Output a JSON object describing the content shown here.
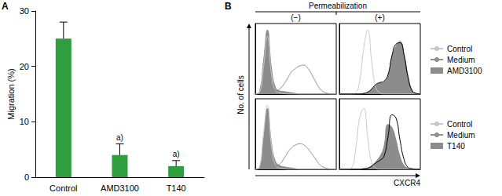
{
  "chart_data": [
    {
      "type": "bar",
      "panel": "A",
      "categories": [
        "Control",
        "AMD3100",
        "T140"
      ],
      "values": [
        25,
        4,
        2
      ],
      "errors": [
        3,
        2,
        1
      ],
      "color": "#2e9e3e",
      "ylabel": "Migration (%)",
      "ylim": [
        0,
        30
      ],
      "yticks": [
        0,
        10,
        20,
        30
      ],
      "grid": false,
      "annotations": [
        {
          "category": "AMD3100",
          "text": "a)"
        },
        {
          "category": "T140",
          "text": "a)"
        }
      ]
    },
    {
      "type": "line",
      "panel": "B",
      "header": "Permeabilization",
      "title": "(−)",
      "ylabel": "No. of cells",
      "tick_labels": false,
      "x": [
        0,
        5,
        10,
        15,
        20,
        25,
        30,
        35,
        40,
        45,
        50,
        55,
        60,
        65,
        70,
        75,
        80,
        85,
        90,
        95,
        100
      ],
      "xlim": [
        0,
        100
      ],
      "ylim": [
        0,
        110
      ],
      "series": [
        {
          "name": "AMD3100",
          "type": "area",
          "color": "#8c8c8c",
          "values": [
            0,
            3,
            50,
            100,
            40,
            10,
            5,
            4,
            3,
            2,
            1,
            0,
            0,
            0,
            0,
            0,
            0,
            0,
            0,
            0,
            0
          ]
        },
        {
          "name": "Control",
          "type": "line",
          "color": "#c8c8c8",
          "values": [
            0,
            2,
            40,
            90,
            30,
            5,
            2,
            1,
            0,
            0,
            0,
            0,
            0,
            0,
            0,
            0,
            0,
            0,
            0,
            0,
            0
          ]
        },
        {
          "name": "Medium",
          "type": "line",
          "color": "#909090",
          "values": [
            0,
            1,
            5,
            8,
            6,
            6,
            8,
            15,
            25,
            35,
            40,
            44,
            45,
            40,
            30,
            18,
            8,
            3,
            1,
            0,
            0
          ]
        }
      ]
    },
    {
      "type": "line",
      "title": "(+)",
      "legend": "right",
      "tick_labels": false,
      "x": [
        0,
        5,
        10,
        15,
        20,
        25,
        30,
        35,
        40,
        45,
        50,
        55,
        60,
        65,
        70,
        75,
        80,
        85,
        90,
        95,
        100
      ],
      "xlim": [
        0,
        100
      ],
      "ylim": [
        0,
        110
      ],
      "series": [
        {
          "name": "AMD3100",
          "type": "area",
          "color": "#8c8c8c",
          "values": [
            0,
            0,
            0,
            0,
            0,
            0,
            1,
            3,
            8,
            14,
            17,
            19,
            28,
            58,
            75,
            82,
            62,
            28,
            6,
            1,
            0
          ]
        },
        {
          "name": "Control",
          "type": "line",
          "color": "#c8c8c8",
          "values": [
            0,
            0,
            0,
            0,
            2,
            20,
            70,
            100,
            50,
            10,
            2,
            0,
            0,
            0,
            0,
            0,
            0,
            0,
            0,
            0,
            0
          ]
        },
        {
          "name": "Medium",
          "type": "line",
          "color": "#000000",
          "values": [
            0,
            0,
            0,
            0,
            0,
            0,
            1,
            3,
            8,
            15,
            18,
            20,
            30,
            60,
            78,
            80,
            60,
            25,
            5,
            1,
            0
          ]
        }
      ]
    },
    {
      "type": "line",
      "tick_labels": false,
      "x": [
        0,
        5,
        10,
        15,
        20,
        25,
        30,
        35,
        40,
        45,
        50,
        55,
        60,
        65,
        70,
        75,
        80,
        85,
        90,
        95,
        100
      ],
      "xlim": [
        0,
        100
      ],
      "ylim": [
        0,
        110
      ],
      "series": [
        {
          "name": "T140",
          "type": "area",
          "color": "#8c8c8c",
          "values": [
            0,
            2,
            45,
            95,
            40,
            12,
            6,
            4,
            3,
            2,
            1,
            0,
            0,
            0,
            0,
            0,
            0,
            0,
            0,
            0,
            0
          ]
        },
        {
          "name": "Control",
          "type": "line",
          "color": "#c8c8c8",
          "values": [
            0,
            3,
            55,
            100,
            35,
            6,
            2,
            1,
            0,
            0,
            0,
            0,
            0,
            0,
            0,
            0,
            0,
            0,
            0,
            0,
            0
          ]
        },
        {
          "name": "Medium",
          "type": "line",
          "color": "#909090",
          "values": [
            0,
            1,
            4,
            6,
            5,
            5,
            8,
            16,
            26,
            34,
            38,
            40,
            38,
            32,
            24,
            15,
            7,
            3,
            1,
            0,
            0
          ]
        }
      ]
    },
    {
      "type": "line",
      "legend": "right",
      "xlabel": "CXCR4",
      "tick_labels": false,
      "x": [
        0,
        5,
        10,
        15,
        20,
        25,
        30,
        35,
        40,
        45,
        50,
        55,
        60,
        65,
        70,
        75,
        80,
        85,
        90,
        95,
        100
      ],
      "xlim": [
        0,
        100
      ],
      "ylim": [
        0,
        110
      ],
      "series": [
        {
          "name": "T140",
          "type": "area",
          "color": "#8c8c8c",
          "values": [
            0,
            0,
            0,
            0,
            0,
            0,
            1,
            2,
            6,
            12,
            20,
            35,
            70,
            65,
            45,
            20,
            6,
            2,
            0,
            0,
            0
          ]
        },
        {
          "name": "Control",
          "type": "line",
          "color": "#c8c8c8",
          "values": [
            0,
            0,
            0,
            2,
            30,
            80,
            95,
            50,
            10,
            2,
            0,
            0,
            0,
            0,
            0,
            0,
            0,
            0,
            0,
            0,
            0
          ]
        },
        {
          "name": "Medium",
          "type": "line",
          "color": "#000000",
          "values": [
            0,
            0,
            0,
            0,
            0,
            0,
            1,
            2,
            5,
            10,
            14,
            20,
            50,
            85,
            80,
            45,
            15,
            3,
            1,
            0,
            0
          ]
        }
      ]
    }
  ]
}
